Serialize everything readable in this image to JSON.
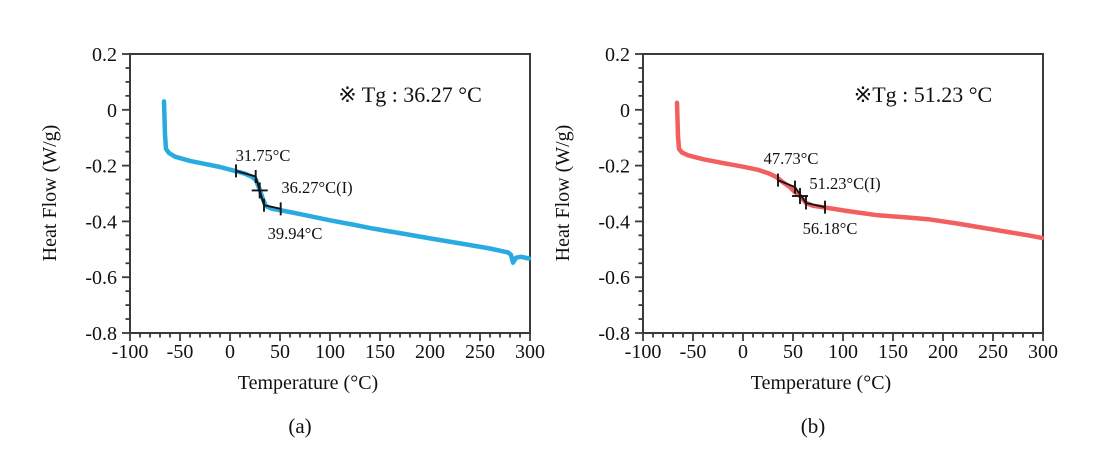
{
  "chart_data": [
    {
      "type": "line",
      "panel": "a",
      "caption": "(a)",
      "tg_note": "※ Tg : 36.27 °C",
      "xlabel": "Temperature (°C)",
      "ylabel": "Heat Flow (W/g)",
      "xlim": [
        -100,
        300
      ],
      "ylim": [
        -0.8,
        0.2
      ],
      "xticks": [
        -100,
        -50,
        0,
        50,
        100,
        150,
        200,
        250,
        300
      ],
      "yticks": [
        0.2,
        0,
        -0.2,
        -0.4,
        -0.6,
        -0.8
      ],
      "x_minor_step": 10,
      "y_minor_step": 0.05,
      "grid": false,
      "line_color": "#29ABE2",
      "series": [
        {
          "name": "dsc-heat-flow-blue",
          "x": [
            -66,
            -65,
            -64,
            -61,
            -55,
            -40,
            -25,
            -10,
            5,
            15,
            22,
            26,
            30,
            33,
            36,
            42,
            52,
            70,
            100,
            125,
            142,
            170,
            200,
            230,
            260,
            278,
            281,
            283,
            286,
            291,
            299
          ],
          "y": [
            0.03,
            -0.09,
            -0.14,
            -0.155,
            -0.168,
            -0.183,
            -0.194,
            -0.205,
            -0.219,
            -0.229,
            -0.24,
            -0.252,
            -0.289,
            -0.322,
            -0.345,
            -0.355,
            -0.361,
            -0.374,
            -0.396,
            -0.413,
            -0.425,
            -0.442,
            -0.461,
            -0.479,
            -0.497,
            -0.511,
            -0.52,
            -0.548,
            -0.53,
            -0.527,
            -0.533
          ]
        }
      ],
      "glass_transition": {
        "onset": {
          "text": "31.75°C",
          "label_pos": [
            33,
            -0.162
          ]
        },
        "inflection": {
          "text": "36.27°C(I)",
          "label_pos": [
            87,
            -0.277
          ],
          "point": [
            29.7,
            -0.289
          ]
        },
        "endset": {
          "text": "39.94°C",
          "label_pos": [
            65,
            -0.442
          ]
        },
        "tangents": [
          {
            "from": [
              6,
              -0.219
            ],
            "to": [
              25.7,
              -0.239
            ],
            "end_ticks": true
          },
          {
            "from": [
              25.7,
              -0.239
            ],
            "to": [
              34,
              -0.342
            ],
            "end_ticks": false
          },
          {
            "from": [
              34,
              -0.342
            ],
            "to": [
              50.7,
              -0.355
            ],
            "end_ticks": true
          }
        ]
      }
    },
    {
      "type": "line",
      "panel": "b",
      "caption": "(b)",
      "tg_note": "※Tg : 51.23 °C",
      "xlabel": "Temperature (°C)",
      "ylabel": "Heat Flow (W/g)",
      "xlim": [
        -100,
        300
      ],
      "ylim": [
        -0.8,
        0.2
      ],
      "xticks": [
        -100,
        -50,
        0,
        50,
        100,
        150,
        200,
        250,
        300
      ],
      "yticks": [
        0.2,
        0,
        -0.2,
        -0.4,
        -0.6,
        -0.8
      ],
      "x_minor_step": 10,
      "y_minor_step": 0.05,
      "grid": false,
      "line_color": "#F15F5F",
      "series": [
        {
          "name": "dsc-heat-flow-red",
          "x": [
            -66,
            -65,
            -64,
            -61,
            -55,
            -40,
            -20,
            0,
            15,
            25,
            33,
            40,
            47,
            52,
            57,
            63,
            70,
            82,
            105,
            135,
            165,
            185,
            215,
            235,
            265,
            285,
            299
          ],
          "y": [
            0.025,
            -0.095,
            -0.14,
            -0.153,
            -0.163,
            -0.177,
            -0.191,
            -0.204,
            -0.215,
            -0.227,
            -0.24,
            -0.26,
            -0.277,
            -0.295,
            -0.309,
            -0.334,
            -0.344,
            -0.35,
            -0.363,
            -0.378,
            -0.386,
            -0.392,
            -0.408,
            -0.42,
            -0.438,
            -0.45,
            -0.459
          ]
        }
      ],
      "glass_transition": {
        "onset": {
          "text": "47.73°C",
          "label_pos": [
            48,
            -0.173
          ]
        },
        "inflection": {
          "text": "51.23°C(I)",
          "label_pos": [
            102,
            -0.262
          ],
          "point": [
            57,
            -0.309
          ]
        },
        "endset": {
          "text": "56.18°C",
          "label_pos": [
            87,
            -0.424
          ]
        },
        "tangents": [
          {
            "from": [
              35,
              -0.252
            ],
            "to": [
              52,
              -0.277
            ],
            "end_ticks": true
          },
          {
            "from": [
              52,
              -0.277
            ],
            "to": [
              63,
              -0.334
            ],
            "end_ticks": false
          },
          {
            "from": [
              63,
              -0.334
            ],
            "to": [
              82,
              -0.349
            ],
            "end_ticks": true
          }
        ]
      }
    }
  ]
}
